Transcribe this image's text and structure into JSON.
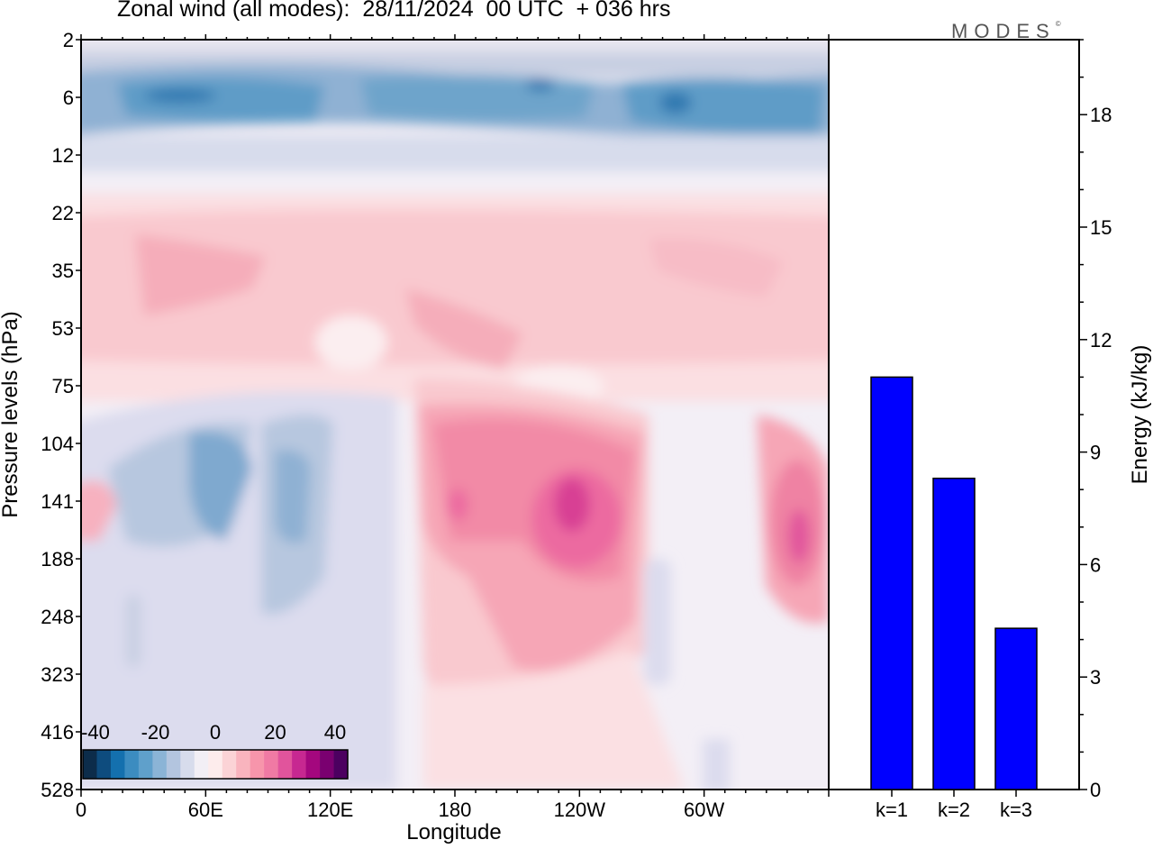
{
  "chart_data": [
    {
      "type": "heatmap",
      "title": "Zonal wind (all modes):  28/11/2024  00 UTC  + 036 hrs",
      "xlabel": "Longitude",
      "ylabel": "Pressure levels (hPa)",
      "x_ticks": [
        {
          "lon": 0,
          "label": "0"
        },
        {
          "lon": 60,
          "label": "60E"
        },
        {
          "lon": 120,
          "label": "120E"
        },
        {
          "lon": 180,
          "label": "180"
        },
        {
          "lon": 240,
          "label": "120W"
        },
        {
          "lon": 300,
          "label": "60W"
        }
      ],
      "xlim": [
        0,
        360
      ],
      "y_levels": [
        "2",
        "6",
        "12",
        "22",
        "35",
        "53",
        "75",
        "104",
        "141",
        "188",
        "248",
        "323",
        "416",
        "528"
      ],
      "colorbar": {
        "labels": [
          "-40",
          "-20",
          "0",
          "20",
          "40"
        ],
        "colors": [
          "#0c2c4a",
          "#0e4c7e",
          "#1470ae",
          "#3c8cc0",
          "#5fa0cb",
          "#8bb4d6",
          "#b3c5df",
          "#d7dcec",
          "#f2eff5",
          "#fdecec",
          "#fbd3d6",
          "#f9b4be",
          "#f795ab",
          "#f07aa4",
          "#e1549c",
          "#c72891",
          "#a4077e",
          "#7a0070",
          "#4c0060"
        ]
      },
      "features": [
        {
          "name": "stratospheric easterly band",
          "lon": [
            5,
            355
          ],
          "level": "6",
          "value": -25
        },
        {
          "name": "westerly jet",
          "lon": 238,
          "level": "141",
          "value": 30
        },
        {
          "name": "westerly jet",
          "lon": 180,
          "level": "141",
          "value": 22
        },
        {
          "name": "westerly jet",
          "lon": 345,
          "level": "188",
          "value": 28
        },
        {
          "name": "easterly core",
          "lon": 65,
          "level": "120",
          "value": -14
        },
        {
          "name": "easterly core",
          "lon": 100,
          "level": "150",
          "value": -12
        }
      ]
    },
    {
      "type": "bar",
      "categories": [
        "k=1",
        "k=2",
        "k=3"
      ],
      "values": [
        11.0,
        8.3,
        4.3
      ],
      "ylabel": "Energy (kJ/kg)",
      "ylim": [
        0,
        20
      ],
      "y_ticks": [
        0,
        3,
        6,
        9,
        12,
        15,
        18
      ],
      "bar_color": "#0000ff"
    }
  ],
  "logo": {
    "text": "MODES",
    "mark": "©"
  }
}
